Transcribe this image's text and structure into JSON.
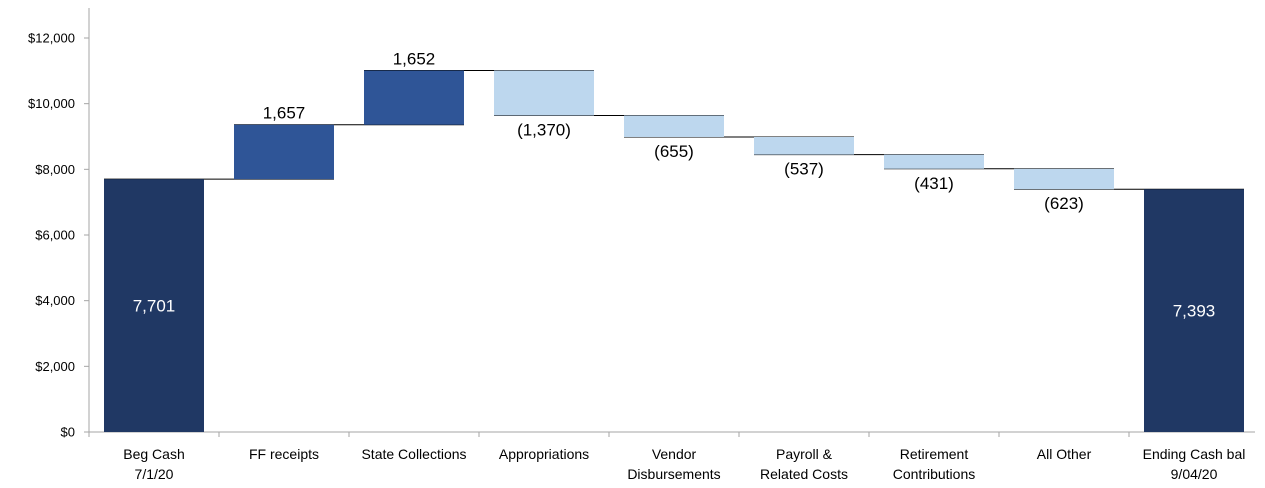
{
  "chart_data": {
    "type": "bar",
    "subtype": "waterfall",
    "title": "",
    "xlabel": "",
    "ylabel": "",
    "ylim": [
      0,
      12000
    ],
    "y_ticks": [
      "$0",
      "$2,000",
      "$4,000",
      "$6,000",
      "$8,000",
      "$10,000",
      "$12,000"
    ],
    "y_tick_values": [
      0,
      2000,
      4000,
      6000,
      8000,
      10000,
      12000
    ],
    "grid": false,
    "categories": [
      [
        "Beg Cash",
        "7/1/20"
      ],
      [
        "FF receipts"
      ],
      [
        "State Collections"
      ],
      [
        "Appropriations"
      ],
      [
        "Vendor",
        "Disbursements"
      ],
      [
        "Payroll &",
        "Related Costs"
      ],
      [
        "Retirement",
        "Contributions"
      ],
      [
        "All Other"
      ],
      [
        "Ending Cash bal",
        "9/04/20"
      ]
    ],
    "steps": [
      {
        "kind": "total",
        "value": 7701,
        "label": "7,701"
      },
      {
        "kind": "increase",
        "value": 1657,
        "label": "1,657"
      },
      {
        "kind": "increase",
        "value": 1652,
        "label": "1,652"
      },
      {
        "kind": "decrease",
        "value": -1370,
        "label": "(1,370)"
      },
      {
        "kind": "decrease",
        "value": -655,
        "label": "(655)"
      },
      {
        "kind": "decrease",
        "value": -537,
        "label": "(537)"
      },
      {
        "kind": "decrease",
        "value": -431,
        "label": "(431)"
      },
      {
        "kind": "decrease",
        "value": -623,
        "label": "(623)"
      },
      {
        "kind": "total",
        "value": 7393,
        "label": "7,393"
      }
    ],
    "colors": {
      "total": "#203864",
      "increase": "#2f5597",
      "decrease": "#bdd7ee",
      "axis": "#a6a6a6",
      "connector": "#000000"
    }
  }
}
